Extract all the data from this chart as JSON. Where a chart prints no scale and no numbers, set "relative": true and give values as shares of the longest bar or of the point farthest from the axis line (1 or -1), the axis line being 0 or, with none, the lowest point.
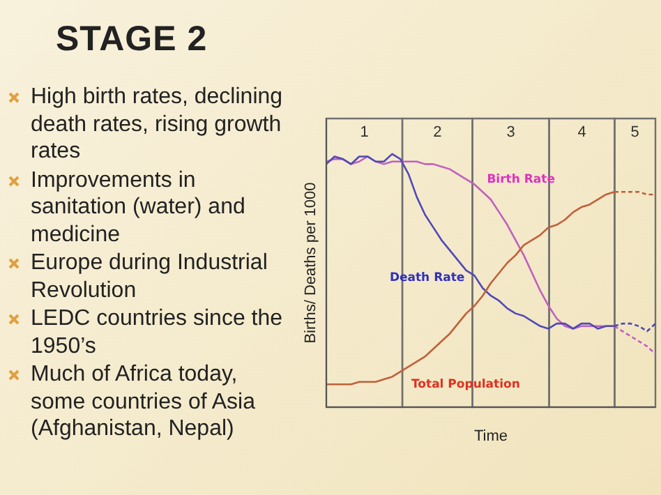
{
  "chart_data": {
    "type": "line",
    "title": "STAGE 2",
    "xlabel": "Time",
    "ylabel": "Births/ Deaths per 1000",
    "relative": true,
    "tick_labels": false,
    "legend": false,
    "marker": "none",
    "categories": [
      null,
      null,
      null,
      null,
      null,
      null,
      null,
      null,
      null,
      null,
      null,
      null,
      null,
      null,
      null,
      null,
      null,
      null,
      null,
      null,
      null,
      null,
      null,
      null,
      null,
      null,
      null,
      null,
      null,
      null,
      null,
      null,
      null,
      null,
      null,
      null,
      null,
      null,
      null,
      null,
      null
    ],
    "annotations": [
      "High birth rates, declining death rates, rising growth rates",
      "Improvements in sanitation (water) and medicine",
      "Europe during Industrial Revolution",
      "LEDC countries since the 1950’s",
      "Much of Africa today, some countries of Asia (Afghanistan, Nepal)",
      "1",
      "2",
      "3",
      "4",
      "5"
    ],
    "series": [
      {
        "name": "Birth Rate",
        "color": "#c060c0",
        "line_style": "solid",
        "values": [
          0.97,
          0.98,
          0.98,
          0.96,
          0.97,
          0.99,
          0.97,
          0.96,
          0.97,
          0.97,
          0.97,
          0.97,
          0.96,
          0.96,
          0.95,
          0.94,
          0.92,
          0.9,
          0.88,
          0.85,
          0.82,
          0.77,
          0.72,
          0.66,
          0.6,
          0.53,
          0.46,
          0.4,
          0.35,
          0.32,
          0.31,
          0.32,
          0.32,
          0.32,
          0.32,
          0.32,
          null,
          null,
          null,
          null,
          null
        ]
      },
      {
        "name": "Death Rate",
        "color": "#5048b8",
        "line_style": "solid",
        "values": [
          0.96,
          0.99,
          0.98,
          0.96,
          0.99,
          0.99,
          0.97,
          0.97,
          1.0,
          0.98,
          0.92,
          0.83,
          0.76,
          0.71,
          0.66,
          0.62,
          0.58,
          0.54,
          0.52,
          0.47,
          0.44,
          0.42,
          0.39,
          0.37,
          0.36,
          0.34,
          0.32,
          0.31,
          0.33,
          0.33,
          0.31,
          0.33,
          0.33,
          0.31,
          0.32,
          0.32,
          null,
          null,
          null,
          null,
          null
        ]
      },
      {
        "name": "Total Population",
        "color": "#c0603a",
        "line_style": "solid",
        "values": [
          0.09,
          0.09,
          0.09,
          0.09,
          0.1,
          0.1,
          0.1,
          0.11,
          0.12,
          0.14,
          0.16,
          0.18,
          0.2,
          0.23,
          0.26,
          0.29,
          0.33,
          0.37,
          0.4,
          0.44,
          0.49,
          0.53,
          0.57,
          0.6,
          0.64,
          0.66,
          0.68,
          0.71,
          0.72,
          0.74,
          0.77,
          0.79,
          0.8,
          0.82,
          0.84,
          0.85,
          null,
          null,
          null,
          null,
          null
        ]
      },
      {
        "color": "#c060c0",
        "line_style": "dashed",
        "values": [
          null,
          null,
          null,
          null,
          null,
          null,
          null,
          null,
          null,
          null,
          null,
          null,
          null,
          null,
          null,
          null,
          null,
          null,
          null,
          null,
          null,
          null,
          null,
          null,
          null,
          null,
          null,
          null,
          null,
          null,
          null,
          null,
          null,
          null,
          null,
          0.32,
          0.3,
          0.28,
          0.26,
          0.24,
          0.21
        ]
      },
      {
        "color": "#5048b8",
        "line_style": "dashed",
        "values": [
          null,
          null,
          null,
          null,
          null,
          null,
          null,
          null,
          null,
          null,
          null,
          null,
          null,
          null,
          null,
          null,
          null,
          null,
          null,
          null,
          null,
          null,
          null,
          null,
          null,
          null,
          null,
          null,
          null,
          null,
          null,
          null,
          null,
          null,
          null,
          0.32,
          0.33,
          0.33,
          0.32,
          0.3,
          0.33
        ]
      },
      {
        "color": "#c0603a",
        "line_style": "dashed",
        "values": [
          null,
          null,
          null,
          null,
          null,
          null,
          null,
          null,
          null,
          null,
          null,
          null,
          null,
          null,
          null,
          null,
          null,
          null,
          null,
          null,
          null,
          null,
          null,
          null,
          null,
          null,
          null,
          null,
          null,
          null,
          null,
          null,
          null,
          null,
          null,
          0.85,
          0.85,
          0.85,
          0.85,
          0.84,
          0.84
        ]
      }
    ]
  }
}
